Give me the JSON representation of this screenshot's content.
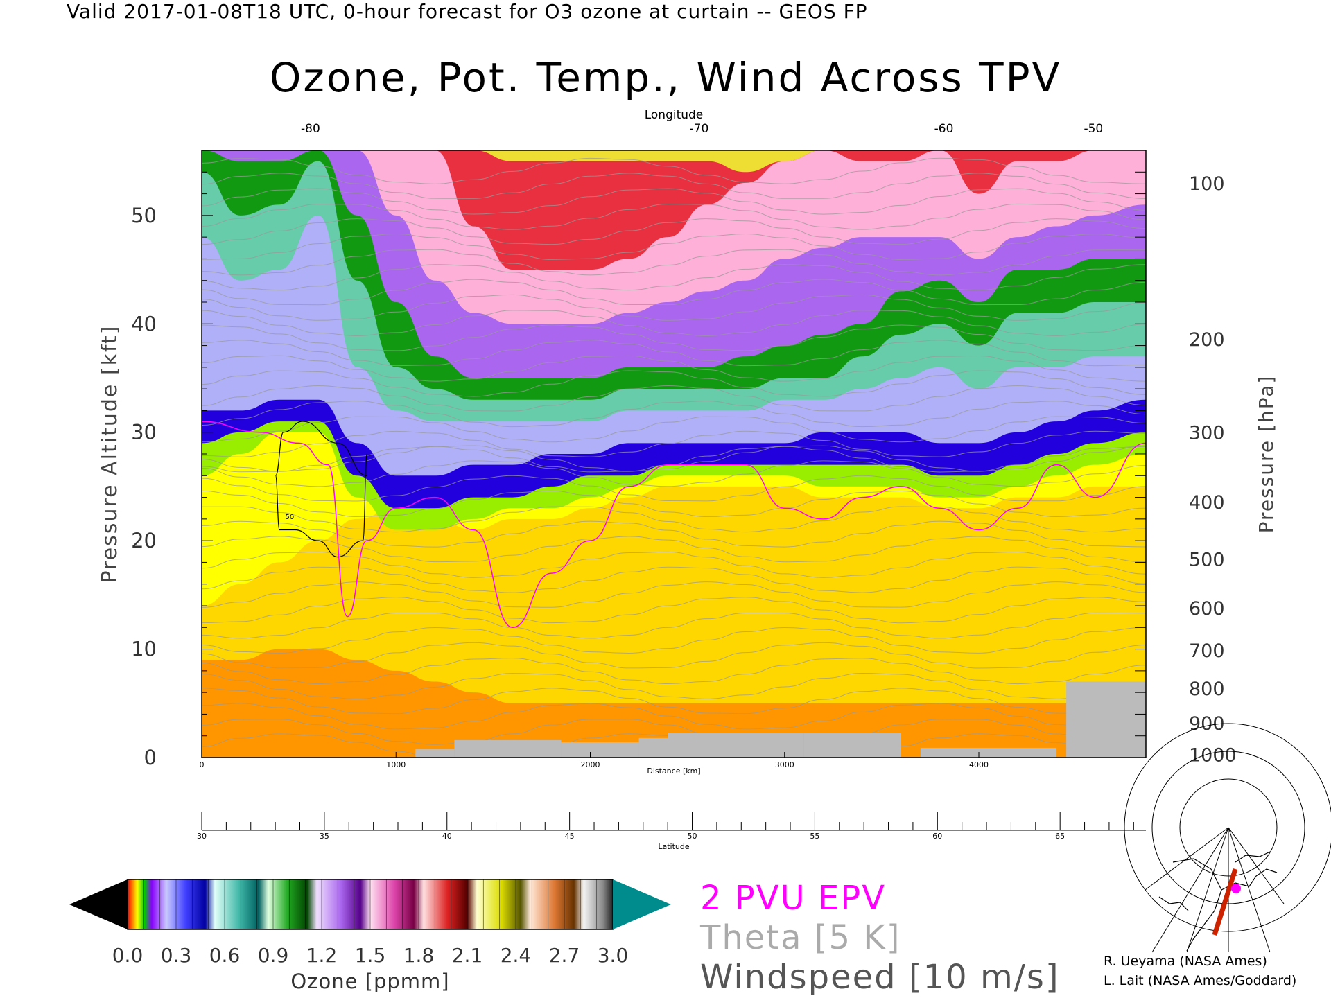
{
  "header": "Valid 2017-01-08T18 UTC, 0-hour forecast for O3 ozone at curtain -- GEOS FP",
  "title": "Ozone, Pot. Temp., Wind Across TPV",
  "chart_data": {
    "type": "heatmap",
    "title": "Ozone, Pot. Temp., Wind Across TPV",
    "xlabel": "Distance [km]",
    "ylabel_left": "Pressure Altitude [kft]",
    "ylabel_right": "Pressure [hPa]",
    "top_axis_label": "Longitude",
    "bottom_axis2_label": "Latitude",
    "xlim": [
      0,
      4860
    ],
    "ylim": [
      0,
      56
    ],
    "x_ticks": [
      0,
      1000,
      2000,
      3000,
      4000
    ],
    "y_left_ticks": [
      0,
      10,
      20,
      30,
      40,
      50
    ],
    "top_axis_ticks": [
      {
        "label": "-80",
        "distance_km": 560
      },
      {
        "label": "-70",
        "distance_km": 2560
      },
      {
        "label": "-60",
        "distance_km": 3820
      },
      {
        "label": "-50",
        "distance_km": 4590
      }
    ],
    "pressure_ticks": [
      {
        "hpa": "100",
        "kft": 53
      },
      {
        "hpa": "200",
        "kft": 38.6
      },
      {
        "hpa": "300",
        "kft": 30.0
      },
      {
        "hpa": "400",
        "kft": 23.6
      },
      {
        "hpa": "500",
        "kft": 18.3
      },
      {
        "hpa": "600",
        "kft": 13.8
      },
      {
        "hpa": "700",
        "kft": 9.9
      },
      {
        "hpa": "800",
        "kft": 6.4
      },
      {
        "hpa": "900",
        "kft": 3.2
      },
      {
        "hpa": "1000",
        "kft": 0.3
      }
    ],
    "latitude_ticks": [
      30,
      35,
      40,
      45,
      50,
      55,
      60,
      65
    ],
    "latitude_range": [
      30,
      68.5
    ],
    "ozone_colorbar": {
      "label": "Ozone [ppmm]",
      "ticks": [
        "0.0",
        "0.3",
        "0.6",
        "0.9",
        "1.2",
        "1.5",
        "1.8",
        "2.1",
        "2.4",
        "2.7",
        "3.0"
      ],
      "range": [
        0,
        3.0
      ]
    },
    "ozone_layers": [
      {
        "ozone_ppmm": 0.05,
        "color": "#FF9600",
        "base_kft": [
          0,
          0,
          0,
          0,
          0,
          0,
          0,
          0,
          0,
          0,
          0,
          0,
          0,
          0,
          0,
          0,
          0,
          0,
          0,
          0,
          0,
          0,
          0,
          0,
          0
        ]
      },
      {
        "ozone_ppmm": 0.15,
        "color": "#FFD700",
        "base_kft": [
          9,
          9,
          10,
          10,
          9,
          8,
          7,
          6,
          5,
          5,
          5,
          5,
          5,
          5,
          5,
          5,
          5,
          5,
          5,
          5,
          5,
          5,
          5,
          5,
          5
        ]
      },
      {
        "ozone_ppmm": 0.3,
        "color": "#FFFF00",
        "base_kft": [
          14,
          16,
          18,
          20,
          22,
          23,
          22,
          21,
          22,
          22,
          23,
          24,
          25,
          25,
          25,
          25,
          24,
          24,
          24,
          23,
          23,
          24,
          24,
          25,
          25
        ]
      },
      {
        "ozone_ppmm": 0.45,
        "color": "#99EE00",
        "base_kft": [
          26,
          28,
          30,
          30,
          24,
          21,
          21,
          22,
          23,
          23,
          24,
          25,
          26,
          26,
          26,
          26,
          25,
          25,
          25,
          24,
          24,
          25,
          26,
          27,
          28
        ]
      },
      {
        "ozone_ppmm": 0.6,
        "color": "#2200DD",
        "base_kft": [
          29,
          30,
          31,
          31,
          26,
          23,
          23,
          24,
          24,
          25,
          26,
          26,
          27,
          27,
          27,
          27,
          27,
          27,
          27,
          26,
          26,
          27,
          28,
          29,
          30
        ]
      },
      {
        "ozone_ppmm": 0.75,
        "color": "#B0B0F8",
        "base_kft": [
          32,
          32,
          33,
          33,
          29,
          26,
          26,
          27,
          27,
          28,
          28,
          29,
          29,
          29,
          29,
          29,
          30,
          30,
          30,
          29,
          29,
          30,
          31,
          32,
          33
        ]
      },
      {
        "ozone_ppmm": 0.9,
        "color": "#66CCAA",
        "base_kft": [
          48,
          44,
          45,
          50,
          36,
          32,
          31,
          31,
          31,
          31,
          31,
          32,
          32,
          32,
          32,
          33,
          33,
          34,
          35,
          36,
          34,
          36,
          36,
          37,
          37
        ]
      },
      {
        "ozone_ppmm": 1.1,
        "color": "#119911",
        "base_kft": [
          54,
          50,
          51,
          55,
          44,
          36,
          34,
          33,
          33,
          33,
          33,
          34,
          34,
          34,
          34,
          35,
          35,
          37,
          39,
          40,
          38,
          41,
          41,
          42,
          42
        ]
      },
      {
        "ozone_ppmm": 1.35,
        "color": "#AA66EE",
        "base_kft": [
          56,
          55,
          55,
          56,
          50,
          42,
          37,
          35,
          35,
          35,
          35,
          36,
          36,
          36,
          37,
          38,
          39,
          40,
          43,
          44,
          42,
          45,
          45,
          46,
          46
        ]
      },
      {
        "ozone_ppmm": 1.6,
        "color": "#FFB0D8",
        "base_kft": [
          56,
          56,
          56,
          56,
          56,
          50,
          44,
          41,
          40,
          40,
          40,
          41,
          42,
          43,
          44,
          46,
          47,
          48,
          48,
          48,
          46,
          48,
          49,
          50,
          51
        ]
      },
      {
        "ozone_ppmm": 1.9,
        "color": "#E83040",
        "base_kft": [
          56,
          56,
          56,
          56,
          56,
          56,
          56,
          49,
          45,
          45,
          45,
          46,
          48,
          51,
          53,
          55,
          56,
          55,
          55,
          56,
          52,
          55,
          55,
          56,
          56
        ]
      },
      {
        "ozone_ppmm": 2.3,
        "color": "#EEDD33",
        "base_kft": [
          56,
          56,
          56,
          56,
          56,
          56,
          56,
          56,
          55,
          55,
          55,
          55,
          55,
          55,
          54,
          55,
          56,
          56,
          56,
          56,
          56,
          56,
          56,
          56,
          56
        ]
      }
    ],
    "layer_x_km": [
      0,
      200,
      400,
      600,
      800,
      1000,
      1200,
      1400,
      1600,
      1800,
      2000,
      2200,
      2400,
      2600,
      2800,
      3000,
      3200,
      3400,
      3600,
      3800,
      4000,
      4200,
      4400,
      4600,
      4860
    ],
    "theta_contours_k": [
      270,
      280,
      290,
      300,
      310,
      320,
      330,
      340,
      350,
      360,
      370,
      380,
      390,
      400,
      410,
      420
    ],
    "theta_interval_k": 5,
    "pv_2pvu_kft": {
      "x_km": [
        0,
        300,
        500,
        650,
        750,
        850,
        1000,
        1200,
        1400,
        1600,
        1800,
        2000,
        2200,
        2400,
        2600,
        2800,
        3000,
        3200,
        3400,
        3600,
        3800,
        4000,
        4200,
        4400,
        4600,
        4860
      ],
      "y_kft": [
        31,
        30,
        29,
        27,
        13,
        20,
        23,
        24,
        21,
        12,
        17,
        20,
        25,
        27,
        27,
        27,
        23,
        22,
        24,
        25,
        23,
        21,
        23,
        27,
        24,
        29
      ]
    },
    "windspeed_contour": {
      "label": "50",
      "units": "m/s",
      "interval_ms": 10
    },
    "legend_labels": [
      "2 PVU EPV",
      "Theta [5 K]",
      "Windspeed [10 m/s]"
    ]
  },
  "legend": {
    "epv": "2 PVU EPV",
    "theta": "Theta [5 K]",
    "wind": "Windspeed [10 m/s]"
  },
  "colors": {
    "epv": "#FF00FF",
    "theta": "#AAAAAA",
    "wind": "#555555",
    "terrain": "#BBBBBB"
  },
  "credits": {
    "line1": "R. Ueyama (NASA Ames)",
    "line2": "L. Lait (NASA Ames/Goddard)"
  },
  "icons": {
    "map_inset": "polar-map-icon"
  }
}
